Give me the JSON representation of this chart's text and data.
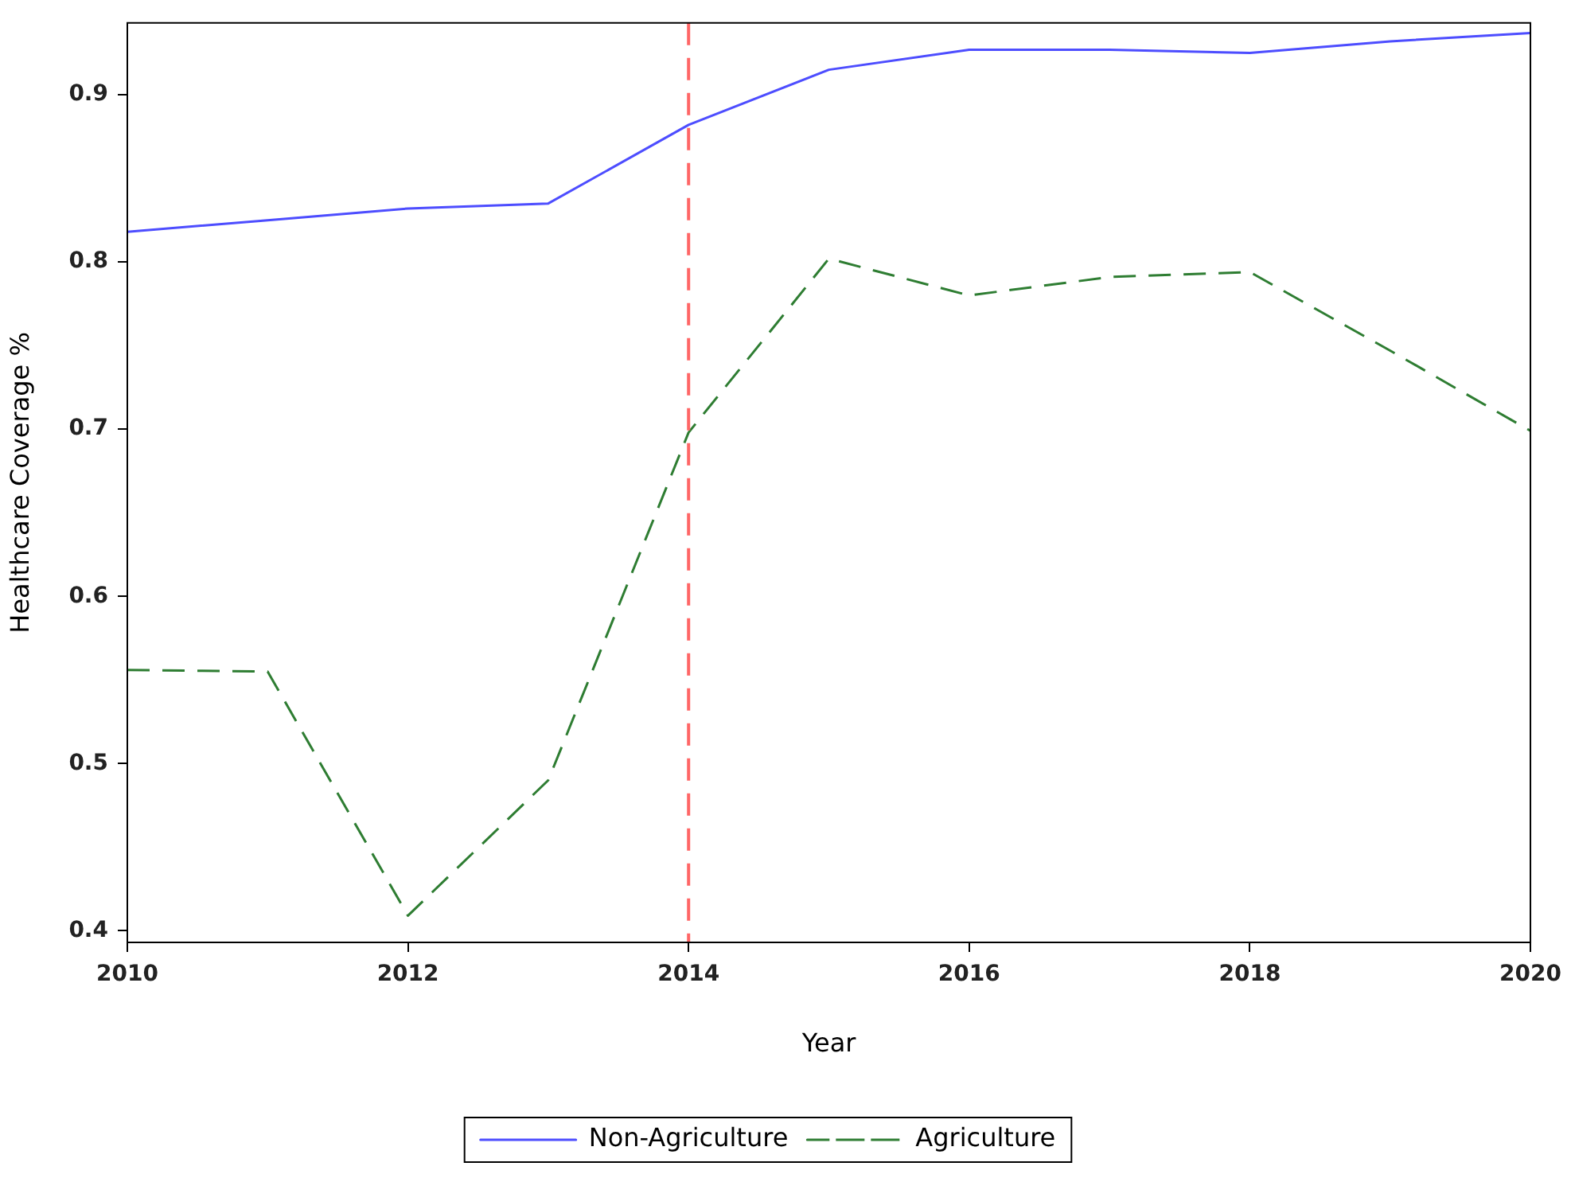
{
  "chart_data": {
    "type": "line",
    "xlabel": "Year",
    "ylabel": "Healthcare Coverage %",
    "x": [
      2010,
      2011,
      2012,
      2013,
      2014,
      2015,
      2016,
      2017,
      2018,
      2019,
      2020
    ],
    "series": [
      {
        "name": "Non-Agriculture",
        "color": "#4d4dff",
        "line_style": "solid",
        "values": [
          0.818,
          0.825,
          0.832,
          0.835,
          0.882,
          0.915,
          0.927,
          0.927,
          0.925,
          0.932,
          0.937
        ]
      },
      {
        "name": "Agriculture",
        "color": "#2e7d32",
        "line_style": "dashed",
        "values": [
          0.556,
          0.555,
          0.409,
          0.49,
          0.698,
          0.802,
          0.78,
          0.791,
          0.794,
          0.747,
          0.699
        ]
      }
    ],
    "xlim": [
      2010,
      2020
    ],
    "xticks": [
      2010,
      2012,
      2014,
      2016,
      2018,
      2020
    ],
    "ylim": [
      0.393,
      0.943
    ],
    "yticks": [
      0.4,
      0.5,
      0.6,
      0.7,
      0.8,
      0.9
    ],
    "ref_lines": [
      {
        "axis": "x",
        "value": 2014,
        "color": "#ff6666",
        "line_style": "dashed"
      }
    ],
    "grid": false,
    "legend": "bottom",
    "marker": "none"
  }
}
